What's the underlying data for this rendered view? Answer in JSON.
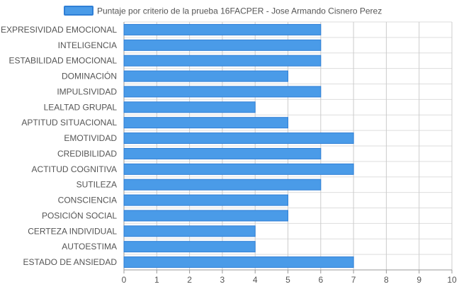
{
  "chart_data": {
    "type": "bar",
    "orientation": "horizontal",
    "categories": [
      "EXPRESIVIDAD EMOCIONAL",
      "INTELIGENCIA",
      "ESTABILIDAD EMOCIONAL",
      "DOMINACIÓN",
      "IMPULSIVIDAD",
      "LEALTAD GRUPAL",
      "APTITUD SITUACIONAL",
      "EMOTIVIDAD",
      "CREDIBILIDAD",
      "ACTITUD COGNITIVA",
      "SUTILEZA",
      "CONSCIENCIA",
      "POSICIÓN SOCIAL",
      "CERTEZA INDIVIDUAL",
      "AUTOESTIMA",
      "ESTADO DE ANSIEDAD"
    ],
    "series": [
      {
        "name": "Puntaje por criterio de la prueba 16FACPER - Jose Armando Cisnero Perez",
        "values": [
          6,
          6,
          6,
          5,
          6,
          4,
          5,
          7,
          6,
          7,
          6,
          5,
          5,
          4,
          4,
          7
        ]
      }
    ],
    "xlim": [
      0,
      10
    ],
    "xticks": [
      "0",
      "1",
      "2",
      "3",
      "4",
      "5",
      "6",
      "7",
      "8",
      "9",
      "10"
    ],
    "grid": true,
    "legend_position": "top",
    "colors": {
      "bar_fill": "#4a9be8",
      "bar_stroke": "#2f7fd6",
      "grid": "#dddddd",
      "axis": "#999999",
      "text": "#555555"
    }
  }
}
